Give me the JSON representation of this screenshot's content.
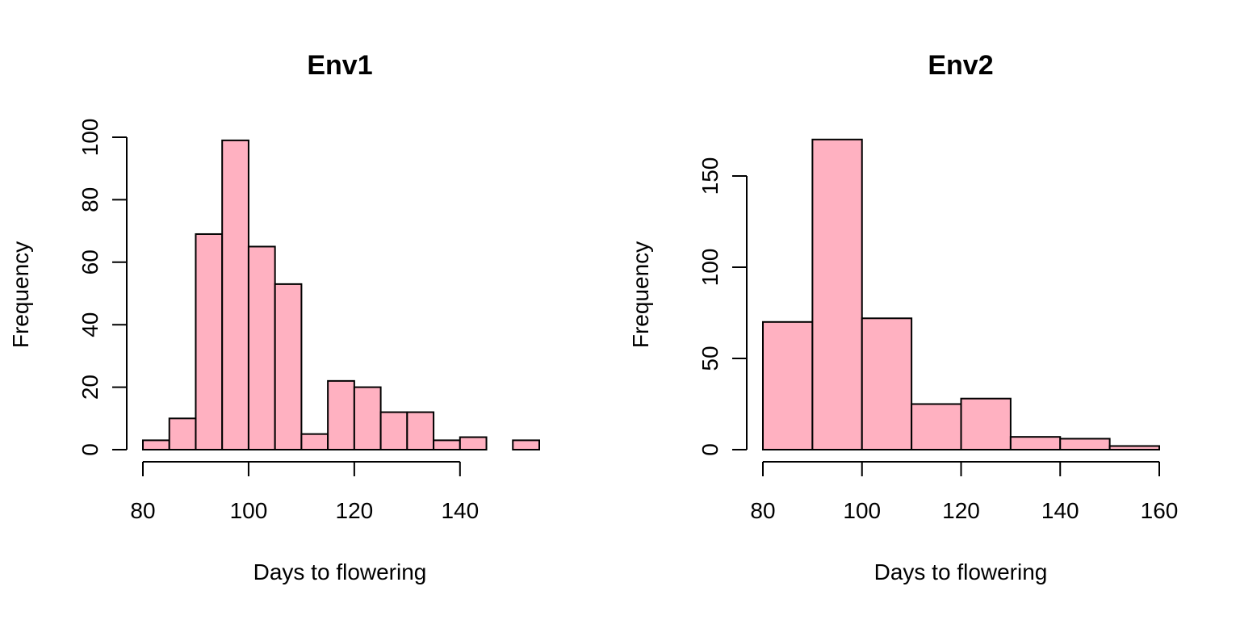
{
  "colors": {
    "bar_fill": "#FFB1C1",
    "bar_stroke": "#000000",
    "background": "#FFFFFF"
  },
  "chart_data": [
    {
      "type": "bar",
      "subtype": "histogram",
      "title": "Env1",
      "xlabel": "Days to flowering",
      "ylabel": "Frequency",
      "bin_edges": [
        80,
        85,
        90,
        95,
        100,
        105,
        110,
        115,
        120,
        125,
        130,
        135,
        140,
        145,
        150,
        155
      ],
      "values": [
        3,
        10,
        69,
        99,
        65,
        53,
        5,
        22,
        20,
        12,
        12,
        3,
        4,
        0,
        3
      ],
      "xlim": [
        80,
        155
      ],
      "ylim": [
        0,
        100
      ],
      "x_ticks": [
        80,
        100,
        120,
        140
      ],
      "y_ticks": [
        0,
        20,
        40,
        60,
        80,
        100
      ],
      "grid": false
    },
    {
      "type": "bar",
      "subtype": "histogram",
      "title": "Env2",
      "xlabel": "Days to flowering",
      "ylabel": "Frequency",
      "bin_edges": [
        80,
        90,
        100,
        110,
        120,
        130,
        140,
        150,
        160
      ],
      "values": [
        70,
        170,
        72,
        25,
        28,
        7,
        6,
        2
      ],
      "xlim": [
        80,
        160
      ],
      "ylim": [
        0,
        150
      ],
      "x_ticks": [
        80,
        100,
        120,
        140,
        160
      ],
      "y_ticks": [
        0,
        50,
        100,
        150
      ],
      "grid": false
    }
  ]
}
